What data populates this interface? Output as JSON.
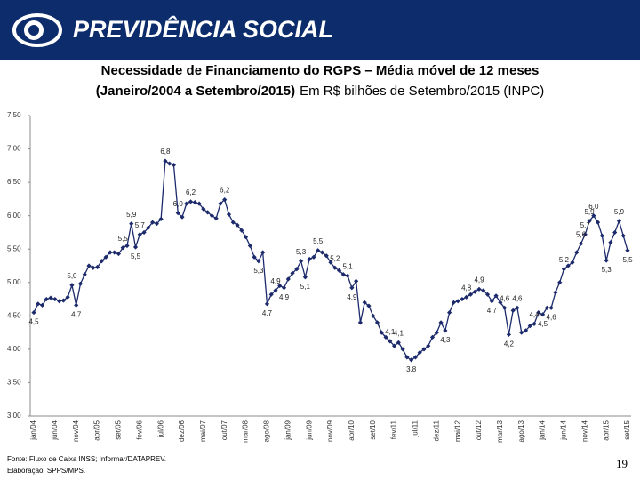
{
  "header": {
    "brand": "PREVIDÊNCIA SOCIAL"
  },
  "chart_data": {
    "type": "line",
    "title": "Necessidade de Financiamento do RGPS – Média móvel de 12 meses",
    "subtitle": "(Janeiro/2004 a Setembro/2015)",
    "subtitle_note": "Em R$ bilhões de Setembro/2015 (INPC)",
    "color": "#1c2a6b",
    "categories": [
      "jan/04",
      null,
      null,
      null,
      null,
      "jun/04",
      null,
      null,
      null,
      null,
      "nov/04",
      null,
      null,
      null,
      null,
      "abr/05",
      null,
      null,
      null,
      null,
      "set/05",
      null,
      null,
      null,
      null,
      "fev/06",
      null,
      null,
      null,
      null,
      "jul/06",
      null,
      null,
      null,
      null,
      "dez/06",
      null,
      null,
      null,
      null,
      "mai/07",
      null,
      null,
      null,
      null,
      "out/07",
      null,
      null,
      null,
      null,
      "mar/08",
      null,
      null,
      null,
      null,
      "ago/08",
      null,
      null,
      null,
      null,
      "jan/09",
      null,
      null,
      null,
      null,
      "jun/09",
      null,
      null,
      null,
      null,
      "nov/09",
      null,
      null,
      null,
      null,
      "abr/10",
      null,
      null,
      null,
      null,
      "set/10",
      null,
      null,
      null,
      null,
      "fev/11",
      null,
      null,
      null,
      null,
      "jul/11",
      null,
      null,
      null,
      null,
      "dez/11",
      null,
      null,
      null,
      null,
      "mai/12",
      null,
      null,
      null,
      null,
      "out/12",
      null,
      null,
      null,
      null,
      "mar/13",
      null,
      null,
      null,
      null,
      "ago/13",
      null,
      null,
      null,
      null,
      "jan/14",
      null,
      null,
      null,
      null,
      "jun/14",
      null,
      null,
      null,
      null,
      "nov/14",
      null,
      null,
      null,
      null,
      "abr/15",
      null,
      null,
      null,
      null,
      "set/15"
    ],
    "values": [
      4.55,
      4.68,
      4.66,
      4.75,
      4.77,
      4.75,
      4.72,
      4.73,
      4.78,
      4.96,
      4.66,
      4.98,
      5.12,
      5.25,
      5.22,
      5.23,
      5.32,
      5.38,
      5.45,
      5.45,
      5.43,
      5.52,
      5.55,
      5.88,
      5.53,
      5.72,
      5.75,
      5.82,
      5.9,
      5.88,
      5.95,
      6.82,
      6.78,
      6.76,
      6.04,
      5.98,
      6.18,
      6.21,
      6.2,
      6.18,
      6.1,
      6.05,
      6.0,
      5.96,
      6.18,
      6.24,
      6.02,
      5.9,
      5.86,
      5.78,
      5.68,
      5.55,
      5.38,
      5.32,
      5.45,
      4.68,
      4.82,
      4.88,
      4.95,
      4.92,
      5.05,
      5.14,
      5.2,
      5.32,
      5.08,
      5.35,
      5.38,
      5.48,
      5.45,
      5.4,
      5.3,
      5.22,
      5.18,
      5.12,
      5.1,
      4.92,
      5.02,
      4.4,
      4.7,
      4.65,
      4.5,
      4.4,
      4.25,
      4.18,
      4.12,
      4.05,
      4.1,
      4.0,
      3.88,
      3.84,
      3.88,
      3.95,
      4.0,
      4.05,
      4.18,
      4.25,
      4.4,
      4.28,
      4.55,
      4.7,
      4.72,
      4.75,
      4.78,
      4.82,
      4.86,
      4.9,
      4.88,
      4.82,
      4.72,
      4.8,
      4.7,
      4.62,
      4.22,
      4.58,
      4.62,
      4.25,
      4.28,
      4.35,
      4.38,
      4.55,
      4.52,
      4.62,
      4.62,
      4.85,
      5.0,
      5.2,
      5.25,
      5.3,
      5.45,
      5.58,
      5.72,
      5.92,
      6.0,
      5.9,
      5.7,
      5.33,
      5.6,
      5.75,
      5.92,
      5.7,
      5.48
    ],
    "value_labels": [
      "4,5",
      null,
      null,
      null,
      null,
      null,
      null,
      null,
      null,
      "5,0",
      "4,7",
      null,
      null,
      null,
      null,
      null,
      null,
      null,
      null,
      null,
      null,
      "5,5",
      null,
      "5,9",
      "5,5",
      "5,7",
      null,
      null,
      null,
      null,
      null,
      "6,8",
      null,
      null,
      "6,0",
      null,
      null,
      "6,2",
      null,
      null,
      null,
      null,
      null,
      null,
      null,
      "6,2",
      null,
      null,
      null,
      null,
      null,
      null,
      null,
      "5,3",
      null,
      "4,7",
      null,
      "4,9",
      null,
      "4,9",
      null,
      null,
      null,
      "5,3",
      "5,1",
      null,
      null,
      "5,5",
      null,
      null,
      null,
      "5,2",
      null,
      null,
      "5,1",
      "4,9",
      null,
      null,
      null,
      null,
      null,
      null,
      null,
      null,
      "4,1",
      null,
      "4,1",
      null,
      null,
      "3,8",
      null,
      null,
      null,
      null,
      null,
      null,
      null,
      "4,3",
      null,
      null,
      null,
      null,
      "4,8",
      null,
      null,
      "4,9",
      null,
      null,
      "4,7",
      null,
      null,
      "4,6",
      "4,2",
      null,
      "4,6",
      null,
      null,
      null,
      "4,4",
      null,
      "4,5",
      null,
      "4,6",
      null,
      null,
      "5,2",
      null,
      null,
      null,
      "5,6",
      "5,7",
      "5,9",
      "6,0",
      null,
      null,
      "5,3",
      null,
      null,
      "5,9",
      null,
      "5,5"
    ],
    "ylim": [
      3.0,
      7.5
    ],
    "yticks": [
      {
        "value": 3.0,
        "label": "3,00"
      },
      {
        "value": 3.5,
        "label": "3,50"
      },
      {
        "value": 4.0,
        "label": "4,00"
      },
      {
        "value": 4.5,
        "label": "4,50"
      },
      {
        "value": 5.0,
        "label": "5,00"
      },
      {
        "value": 5.5,
        "label": "5,50"
      },
      {
        "value": 6.0,
        "label": "6,00"
      },
      {
        "value": 6.5,
        "label": "6,50"
      },
      {
        "value": 7.0,
        "label": "7,00"
      },
      {
        "value": 7.5,
        "label": "7,50"
      }
    ]
  },
  "footer": {
    "source": "Fonte: Fluxo de Caixa INSS; Informar/DATAPREV.",
    "prepared": "Elaboração: SPPS/MPS.",
    "page": "19"
  }
}
